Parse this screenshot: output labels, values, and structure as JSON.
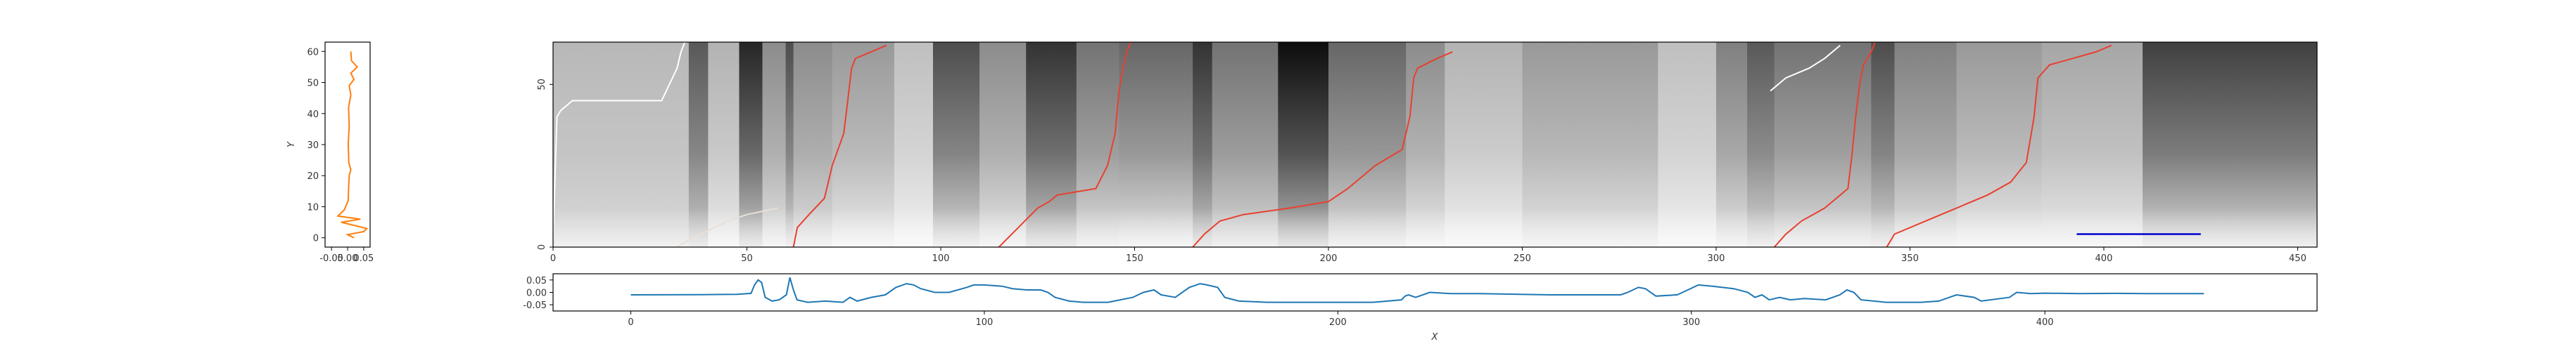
{
  "figure": {
    "background": "#ffffff"
  },
  "chart_data": [
    {
      "id": "left",
      "type": "line",
      "orientation": "vertical",
      "ylabel": "Y",
      "xlim": [
        -0.07,
        0.07
      ],
      "ylim": [
        -3,
        63
      ],
      "xticks": [
        -0.05,
        0.0,
        0.05
      ],
      "xtick_labels": [
        "-0.05",
        "0.00",
        "0.05"
      ],
      "yticks": [
        0,
        10,
        20,
        30,
        40,
        50,
        60
      ],
      "ytick_labels": [
        "0",
        "10",
        "20",
        "30",
        "40",
        "50",
        "60"
      ],
      "color": "#ff7f0e",
      "points": [
        [
          0.01,
          60
        ],
        [
          0.012,
          57
        ],
        [
          0.03,
          55
        ],
        [
          0.01,
          53
        ],
        [
          0.02,
          51
        ],
        [
          0.005,
          49
        ],
        [
          0.01,
          46
        ],
        [
          0.003,
          42
        ],
        [
          0.005,
          36
        ],
        [
          0.002,
          30
        ],
        [
          0.004,
          24
        ],
        [
          0.01,
          22
        ],
        [
          0.005,
          20
        ],
        [
          0.003,
          16
        ],
        [
          0.002,
          12
        ],
        [
          -0.01,
          9
        ],
        [
          -0.03,
          7
        ],
        [
          0.04,
          6
        ],
        [
          -0.02,
          5
        ],
        [
          0.02,
          4
        ],
        [
          0.06,
          3
        ],
        [
          0.05,
          2
        ],
        [
          0.0,
          1
        ],
        [
          0.02,
          0
        ]
      ]
    },
    {
      "id": "heatmap",
      "type": "heatmap",
      "xlim": [
        0,
        455
      ],
      "ylim": [
        0,
        63
      ],
      "xticks": [
        0,
        50,
        100,
        150,
        200,
        250,
        300,
        350,
        400,
        450
      ],
      "xtick_labels": [
        "0",
        "50",
        "100",
        "150",
        "200",
        "250",
        "300",
        "350",
        "400",
        "450"
      ],
      "yticks": [
        0,
        50
      ],
      "ytick_labels": [
        "0",
        "50"
      ],
      "colormap": "gray",
      "columns": [
        [
          0,
          35,
          0.72,
          0.85
        ],
        [
          35,
          40,
          0.35,
          0.8
        ],
        [
          40,
          48,
          0.7,
          0.92
        ],
        [
          48,
          54,
          0.15,
          0.8
        ],
        [
          54,
          60,
          0.55,
          0.9
        ],
        [
          60,
          62,
          0.3,
          0.85
        ],
        [
          62,
          72,
          0.55,
          0.88
        ],
        [
          72,
          88,
          0.6,
          0.92
        ],
        [
          88,
          98,
          0.75,
          0.95
        ],
        [
          98,
          110,
          0.3,
          0.85
        ],
        [
          110,
          122,
          0.55,
          0.9
        ],
        [
          122,
          135,
          0.2,
          0.8
        ],
        [
          135,
          146,
          0.45,
          0.88
        ],
        [
          146,
          165,
          0.4,
          0.9
        ],
        [
          165,
          170,
          0.2,
          0.8
        ],
        [
          170,
          187,
          0.45,
          0.85
        ],
        [
          187,
          200,
          0.05,
          0.75
        ],
        [
          200,
          220,
          0.4,
          0.88
        ],
        [
          220,
          230,
          0.55,
          0.92
        ],
        [
          230,
          250,
          0.7,
          0.95
        ],
        [
          250,
          285,
          0.6,
          0.9
        ],
        [
          285,
          300,
          0.75,
          0.95
        ],
        [
          300,
          308,
          0.5,
          0.9
        ],
        [
          308,
          315,
          0.35,
          0.85
        ],
        [
          315,
          340,
          0.45,
          0.88
        ],
        [
          340,
          346,
          0.3,
          0.85
        ],
        [
          346,
          362,
          0.5,
          0.9
        ],
        [
          362,
          384,
          0.6,
          0.92
        ],
        [
          384,
          410,
          0.65,
          0.92
        ],
        [
          410,
          455,
          0.25,
          0.85
        ]
      ],
      "paths": [
        {
          "color": "#ffffff",
          "points": [
            [
              0,
              2
            ],
            [
              1,
              40
            ],
            [
              2,
              42
            ],
            [
              5,
              45
            ],
            [
              28,
              45
            ],
            [
              30,
              50
            ],
            [
              32,
              55
            ],
            [
              33,
              60
            ],
            [
              34,
              63
            ]
          ]
        },
        {
          "color": "#e8e0d8",
          "points": [
            [
              32,
              0
            ],
            [
              36,
              3
            ],
            [
              40,
              5
            ],
            [
              45,
              8
            ],
            [
              50,
              10
            ],
            [
              58,
              12
            ]
          ]
        },
        {
          "color": "#e84030",
          "points": [
            [
              62,
              0
            ],
            [
              63,
              6
            ],
            [
              66,
              10
            ],
            [
              70,
              15
            ],
            [
              72,
              25
            ],
            [
              75,
              35
            ],
            [
              76,
              45
            ],
            [
              77,
              55
            ],
            [
              78,
              58
            ],
            [
              82,
              60
            ],
            [
              86,
              62
            ]
          ]
        },
        {
          "color": "#e84030",
          "points": [
            [
              115,
              0
            ],
            [
              120,
              6
            ],
            [
              125,
              12
            ],
            [
              128,
              14
            ],
            [
              130,
              16
            ],
            [
              140,
              18
            ],
            [
              143,
              25
            ],
            [
              145,
              35
            ],
            [
              146,
              48
            ],
            [
              147,
              55
            ],
            [
              148,
              60
            ],
            [
              149,
              63
            ]
          ]
        },
        {
          "color": "#e84030",
          "points": [
            [
              165,
              0
            ],
            [
              168,
              4
            ],
            [
              172,
              8
            ],
            [
              178,
              10
            ],
            [
              190,
              12
            ],
            [
              200,
              14
            ],
            [
              205,
              18
            ],
            [
              212,
              25
            ],
            [
              219,
              30
            ],
            [
              221,
              40
            ],
            [
              222,
              52
            ],
            [
              223,
              55
            ],
            [
              228,
              58
            ],
            [
              232,
              60
            ]
          ]
        },
        {
          "color": "#e84030",
          "points": [
            [
              315,
              0
            ],
            [
              318,
              4
            ],
            [
              322,
              8
            ],
            [
              328,
              12
            ],
            [
              334,
              18
            ],
            [
              335,
              28
            ],
            [
              336,
              40
            ],
            [
              337,
              50
            ],
            [
              338,
              56
            ],
            [
              340,
              60
            ],
            [
              341,
              63
            ]
          ]
        },
        {
          "color": "#e84030",
          "points": [
            [
              344,
              0
            ],
            [
              346,
              4
            ],
            [
              354,
              8
            ],
            [
              362,
              12
            ],
            [
              370,
              16
            ],
            [
              376,
              20
            ],
            [
              380,
              26
            ],
            [
              382,
              40
            ],
            [
              383,
              52
            ],
            [
              386,
              56
            ],
            [
              392,
              58
            ],
            [
              398,
              60
            ],
            [
              402,
              62
            ]
          ]
        },
        {
          "color": "#ffffff",
          "points": [
            [
              314,
              48
            ],
            [
              318,
              52
            ],
            [
              324,
              55
            ],
            [
              328,
              58
            ],
            [
              332,
              62
            ]
          ]
        }
      ],
      "annotation_segment": {
        "color": "#0000cc",
        "x": [
          393,
          425
        ],
        "y": 4
      }
    },
    {
      "id": "bottom",
      "type": "line",
      "xlabel": "X",
      "xlim": [
        -22,
        477
      ],
      "ylim": [
        -0.075,
        0.075
      ],
      "xticks": [
        0,
        100,
        200,
        300,
        400
      ],
      "xtick_labels": [
        "0",
        "100",
        "200",
        "300",
        "400"
      ],
      "yticks": [
        0.05,
        0.0,
        -0.05
      ],
      "ytick_labels": [
        "0.05",
        "0.00",
        "-0.05"
      ],
      "color": "#1f77b4",
      "points": [
        [
          0,
          -0.01
        ],
        [
          20,
          -0.009
        ],
        [
          30,
          -0.008
        ],
        [
          34,
          -0.004
        ],
        [
          35,
          0.03
        ],
        [
          36,
          0.05
        ],
        [
          37,
          0.04
        ],
        [
          38,
          -0.02
        ],
        [
          40,
          -0.035
        ],
        [
          42,
          -0.03
        ],
        [
          44,
          -0.01
        ],
        [
          45,
          0.06
        ],
        [
          46,
          0.01
        ],
        [
          47,
          -0.03
        ],
        [
          50,
          -0.04
        ],
        [
          55,
          -0.035
        ],
        [
          60,
          -0.04
        ],
        [
          62,
          -0.02
        ],
        [
          64,
          -0.035
        ],
        [
          68,
          -0.02
        ],
        [
          72,
          -0.01
        ],
        [
          75,
          0.02
        ],
        [
          78,
          0.035
        ],
        [
          80,
          0.03
        ],
        [
          82,
          0.015
        ],
        [
          86,
          0.0
        ],
        [
          90,
          0.0
        ],
        [
          95,
          0.02
        ],
        [
          97,
          0.03
        ],
        [
          100,
          0.03
        ],
        [
          105,
          0.025
        ],
        [
          108,
          0.015
        ],
        [
          112,
          0.01
        ],
        [
          116,
          0.01
        ],
        [
          118,
          0.0
        ],
        [
          120,
          -0.02
        ],
        [
          124,
          -0.035
        ],
        [
          128,
          -0.04
        ],
        [
          135,
          -0.04
        ],
        [
          142,
          -0.02
        ],
        [
          145,
          0.0
        ],
        [
          148,
          0.01
        ],
        [
          150,
          -0.01
        ],
        [
          154,
          -0.02
        ],
        [
          158,
          0.02
        ],
        [
          161,
          0.035
        ],
        [
          163,
          0.03
        ],
        [
          166,
          0.02
        ],
        [
          168,
          -0.02
        ],
        [
          172,
          -0.035
        ],
        [
          180,
          -0.04
        ],
        [
          190,
          -0.04
        ],
        [
          200,
          -0.04
        ],
        [
          210,
          -0.04
        ],
        [
          218,
          -0.03
        ],
        [
          219,
          -0.015
        ],
        [
          220,
          -0.01
        ],
        [
          222,
          -0.02
        ],
        [
          226,
          0.0
        ],
        [
          232,
          -0.005
        ],
        [
          240,
          -0.005
        ],
        [
          260,
          -0.01
        ],
        [
          280,
          -0.01
        ],
        [
          282,
          0.0
        ],
        [
          285,
          0.02
        ],
        [
          287,
          0.015
        ],
        [
          290,
          -0.015
        ],
        [
          296,
          -0.01
        ],
        [
          299,
          0.01
        ],
        [
          302,
          0.03
        ],
        [
          306,
          0.025
        ],
        [
          312,
          0.015
        ],
        [
          316,
          0.0
        ],
        [
          318,
          -0.02
        ],
        [
          320,
          -0.01
        ],
        [
          322,
          -0.03
        ],
        [
          325,
          -0.02
        ],
        [
          328,
          -0.03
        ],
        [
          332,
          -0.025
        ],
        [
          338,
          -0.03
        ],
        [
          342,
          -0.01
        ],
        [
          344,
          0.01
        ],
        [
          346,
          0.0
        ],
        [
          348,
          -0.03
        ],
        [
          355,
          -0.04
        ],
        [
          365,
          -0.04
        ],
        [
          370,
          -0.035
        ],
        [
          375,
          -0.01
        ],
        [
          380,
          -0.02
        ],
        [
          382,
          -0.035
        ],
        [
          390,
          -0.02
        ],
        [
          392,
          0.0
        ],
        [
          396,
          -0.005
        ],
        [
          400,
          -0.003
        ],
        [
          410,
          -0.005
        ],
        [
          420,
          -0.004
        ],
        [
          430,
          -0.005
        ],
        [
          445,
          -0.005
        ]
      ]
    }
  ]
}
